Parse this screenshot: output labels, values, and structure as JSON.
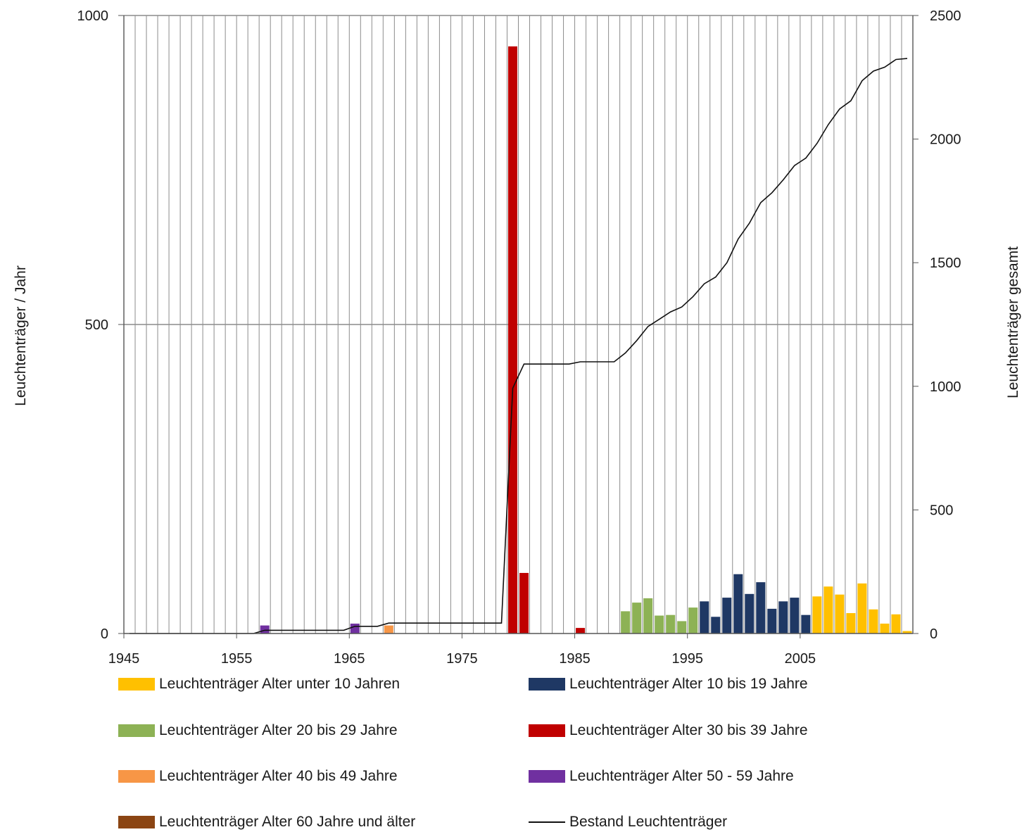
{
  "chart_data": {
    "type": "bar",
    "x_type": "year",
    "left_axis": {
      "title": "Leuchtenträger / Jahr",
      "range": [
        0,
        1000
      ],
      "ticks": [
        0,
        500,
        1000
      ]
    },
    "right_axis": {
      "title": "Leuchtenträger gesamt",
      "range": [
        0,
        2500
      ],
      "ticks": [
        0,
        500,
        1000,
        1500,
        2000,
        2500
      ]
    },
    "x_axis": {
      "range": [
        1945,
        2014
      ],
      "tick_labels": [
        1945,
        1955,
        1965,
        1975,
        1985,
        1995,
        2005
      ]
    },
    "grid": {
      "vertical": "yearly",
      "horizontal": [
        500,
        1000
      ]
    },
    "legend_position": "bottom",
    "bar_series": [
      {
        "name": "Leuchtenträger Alter unter 10 Jahren",
        "color": "#FFC000",
        "points": [
          [
            2006,
            60
          ],
          [
            2007,
            76
          ],
          [
            2008,
            63
          ],
          [
            2009,
            33
          ],
          [
            2010,
            81
          ],
          [
            2011,
            39
          ],
          [
            2012,
            16
          ],
          [
            2013,
            31
          ],
          [
            2014,
            4
          ]
        ]
      },
      {
        "name": "Leuchtenträger Alter 10 bis 19 Jahre",
        "color": "#1F3864",
        "points": [
          [
            1996,
            52
          ],
          [
            1997,
            27
          ],
          [
            1998,
            58
          ],
          [
            1999,
            96
          ],
          [
            2000,
            64
          ],
          [
            2001,
            83
          ],
          [
            2002,
            40
          ],
          [
            2003,
            52
          ],
          [
            2004,
            58
          ],
          [
            2005,
            30
          ]
        ]
      },
      {
        "name": "Leuchtenträger Alter 20 bis 29 Jahre",
        "color": "#8DB255",
        "points": [
          [
            1989,
            36
          ],
          [
            1990,
            50
          ],
          [
            1991,
            57
          ],
          [
            1992,
            29
          ],
          [
            1993,
            30
          ],
          [
            1994,
            20
          ],
          [
            1995,
            42
          ]
        ]
      },
      {
        "name": "Leuchtenträger Alter 30 bis 39 Jahre",
        "color": "#C00000",
        "points": [
          [
            1979,
            950
          ],
          [
            1980,
            98
          ],
          [
            1985,
            9
          ]
        ]
      },
      {
        "name": "Leuchtenträger Alter 40 bis 49 Jahre",
        "color": "#F79646",
        "points": [
          [
            1968,
            13
          ]
        ]
      },
      {
        "name": "Leuchtenträger Alter 50 - 59 Jahre",
        "color": "#7030A0",
        "points": [
          [
            1957,
            13
          ],
          [
            1965,
            16
          ]
        ]
      },
      {
        "name": "Leuchtenträger Alter 60 Jahre und älter",
        "color": "#8B4513",
        "points": []
      }
    ],
    "line_series": {
      "name": "Bestand Leuchtenträger",
      "color": "#111111",
      "axis": "right",
      "points": [
        [
          1945,
          0
        ],
        [
          1956,
          0
        ],
        [
          1957,
          13
        ],
        [
          1964,
          13
        ],
        [
          1965,
          29
        ],
        [
          1967,
          29
        ],
        [
          1968,
          42
        ],
        [
          1978,
          42
        ],
        [
          1979,
          992
        ],
        [
          1980,
          1090
        ],
        [
          1984,
          1090
        ],
        [
          1985,
          1099
        ],
        [
          1988,
          1099
        ],
        [
          1989,
          1135
        ],
        [
          1990,
          1185
        ],
        [
          1991,
          1242
        ],
        [
          1992,
          1271
        ],
        [
          1993,
          1301
        ],
        [
          1994,
          1321
        ],
        [
          1995,
          1363
        ],
        [
          1996,
          1415
        ],
        [
          1997,
          1442
        ],
        [
          1998,
          1500
        ],
        [
          1999,
          1596
        ],
        [
          2000,
          1660
        ],
        [
          2001,
          1743
        ],
        [
          2002,
          1783
        ],
        [
          2003,
          1835
        ],
        [
          2004,
          1893
        ],
        [
          2005,
          1923
        ],
        [
          2006,
          1983
        ],
        [
          2007,
          2059
        ],
        [
          2008,
          2122
        ],
        [
          2009,
          2155
        ],
        [
          2010,
          2236
        ],
        [
          2011,
          2275
        ],
        [
          2012,
          2291
        ],
        [
          2013,
          2322
        ],
        [
          2014,
          2326
        ]
      ]
    }
  }
}
